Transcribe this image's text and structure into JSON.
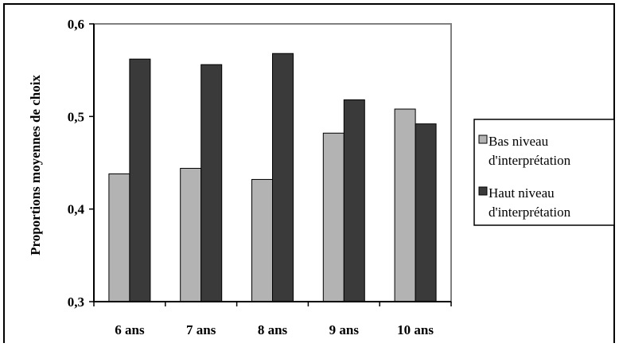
{
  "chart_data": {
    "type": "bar",
    "categories": [
      "6 ans",
      "7 ans",
      "8 ans",
      "9 ans",
      "10 ans"
    ],
    "series": [
      {
        "name": "Bas niveau d'interprétation",
        "values": [
          0.438,
          0.444,
          0.432,
          0.482,
          0.508
        ]
      },
      {
        "name": "Haut niveau d'interprétation",
        "values": [
          0.562,
          0.556,
          0.568,
          0.518,
          0.492
        ]
      }
    ],
    "title": "",
    "xlabel": "",
    "ylabel": "Proportions moyennes de choix",
    "ylim": [
      0.3,
      0.6
    ],
    "yticks": [
      "0,3",
      "0,4",
      "0,5",
      "0,6"
    ],
    "ytick_values": [
      0.3,
      0.4,
      0.5,
      0.6
    ],
    "grid": false,
    "legend_position": "right",
    "legend_lines": [
      [
        "Bas niveau",
        "d'interprétation"
      ],
      [
        "Haut niveau",
        "d'interprétation"
      ]
    ],
    "colors": {
      "series": [
        "#b3b3b3",
        "#3a3a3a"
      ],
      "plot_background": "#ffffff",
      "plot_border": "#808080",
      "frame": "#000000"
    }
  }
}
